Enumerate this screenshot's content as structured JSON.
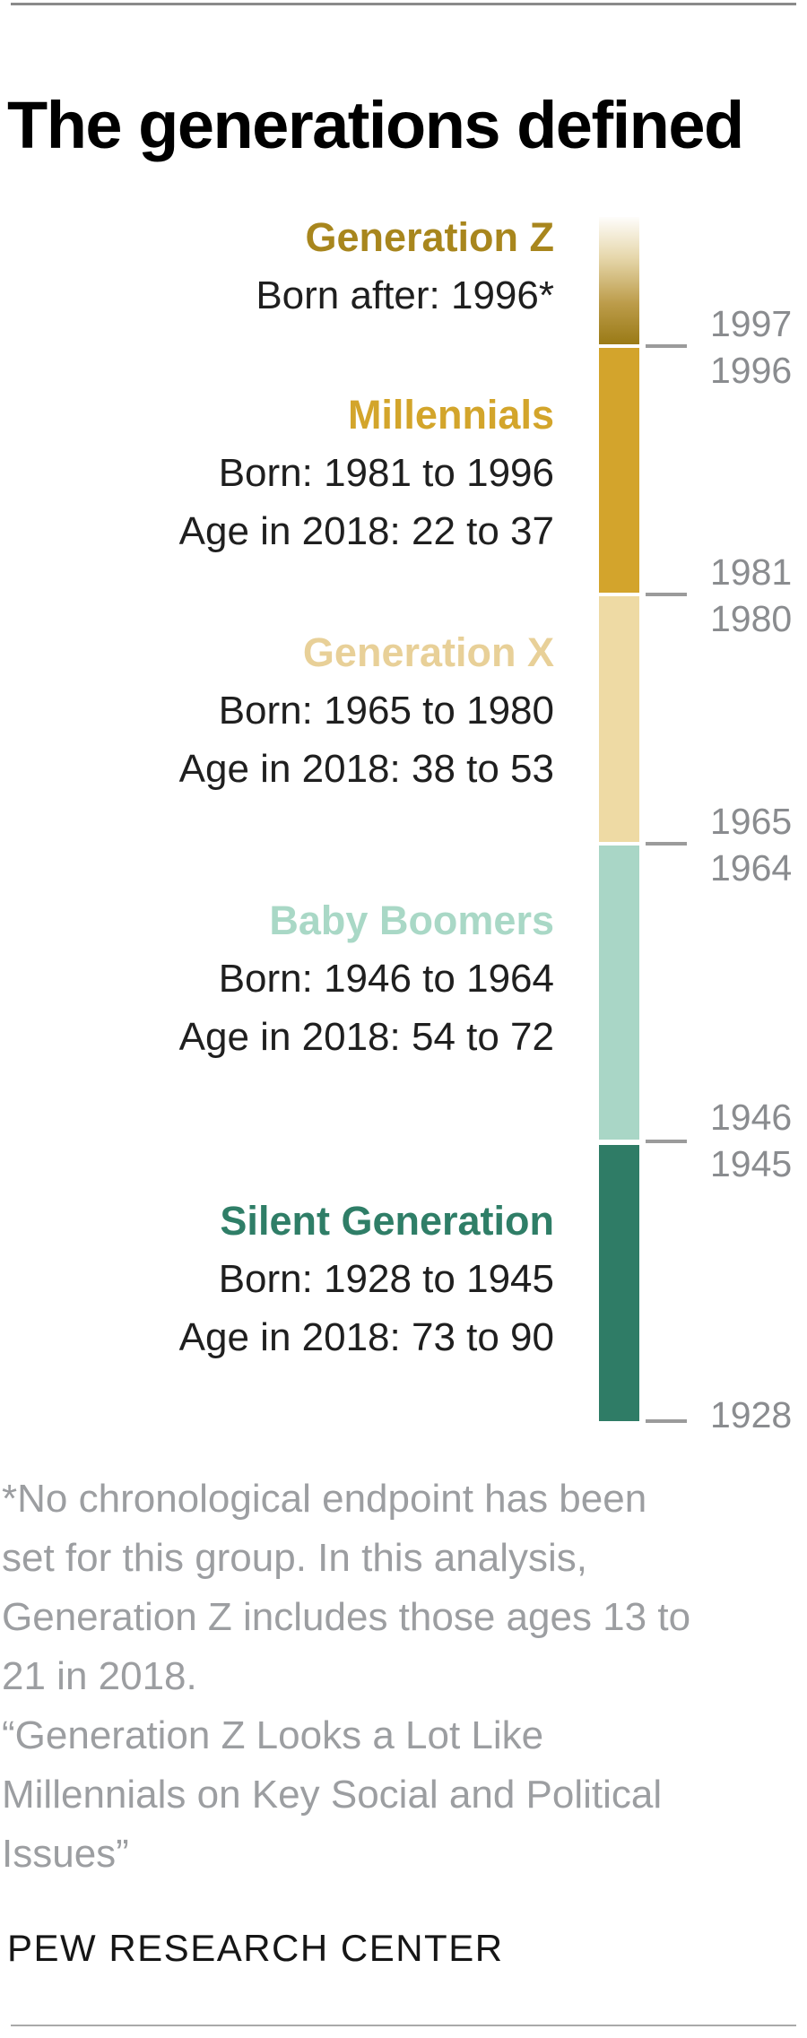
{
  "page": {
    "title": "The generations defined",
    "source": "PEW RESEARCH CENTER",
    "footnote_lines": [
      "*No chronological endpoint has been",
      "set for this group. In this analysis,",
      "Generation Z includes those ages 13 to",
      "21 in 2018.",
      "“Generation Z Looks a Lot Like",
      "Millennials on Key Social and Political",
      "Issues”"
    ]
  },
  "colors": {
    "body_text": "#1f1f1f",
    "tick_label_gray": "#8a8c8f",
    "footnote_gray": "#9c9ea1",
    "tick_dash_gray": "#9b9b9b",
    "rule_gray": "#8a8a8a"
  },
  "chart_data": {
    "type": "bar",
    "subtype": "vertical-generation-timeline",
    "title": "The generations defined",
    "orientation": "vertical",
    "grid": false,
    "legend": "none",
    "year_axis": {
      "side": "right",
      "open_ended_top": true,
      "ticks": [
        "1997",
        "1996",
        "1981",
        "1980",
        "1965",
        "1964",
        "1946",
        "1945",
        "1928"
      ],
      "year_range_shown": [
        1928,
        1997
      ]
    },
    "generations": [
      {
        "name": "Generation Z",
        "born_label": "Born after: 1996*",
        "born_after": 1996,
        "heading_color": "#a8861d",
        "bar_color_gradient": [
          "#fefdfb",
          "#e6d7ab",
          "#bc9c4a",
          "#9a7a16"
        ]
      },
      {
        "name": "Millennials",
        "born_label": "Born: 1981 to 1996",
        "age_label": "Age in 2018: 22 to 37",
        "born": [
          1981,
          1996
        ],
        "age_in_2018": [
          22,
          37
        ],
        "heading_color": "#d3a52b",
        "bar_color": "#d3a42c"
      },
      {
        "name": "Generation X",
        "born_label": "Born: 1965 to 1980",
        "age_label": "Age in 2018: 38 to 53",
        "born": [
          1965,
          1980
        ],
        "age_in_2018": [
          38,
          53
        ],
        "heading_color": "#e8d098",
        "bar_color": "#eedaa4"
      },
      {
        "name": "Baby Boomers",
        "born_label": "Born: 1946 to 1964",
        "age_label": "Age in 2018: 54 to 72",
        "born": [
          1946,
          1964
        ],
        "age_in_2018": [
          54,
          72
        ],
        "heading_color": "#a9d8c6",
        "bar_color": "#a9d6c6"
      },
      {
        "name": "Silent Generation",
        "born_label": "Born: 1928 to 1945",
        "age_label": "Age in 2018: 73 to 90",
        "born": [
          1928,
          1945
        ],
        "age_in_2018": [
          73,
          90
        ],
        "heading_color": "#2f7e67",
        "bar_color": "#2f7c66"
      }
    ]
  }
}
